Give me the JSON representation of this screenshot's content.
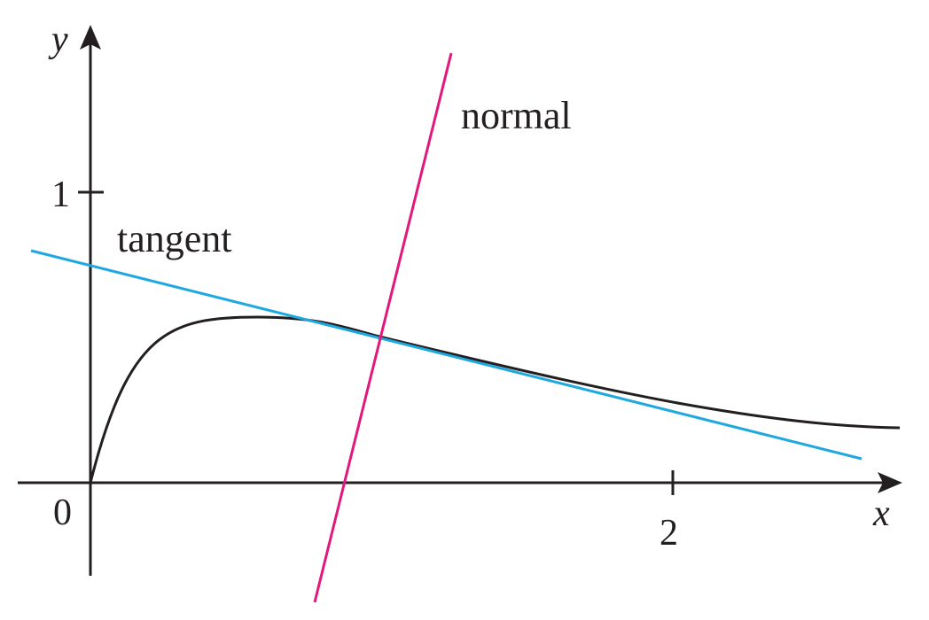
{
  "labels": {
    "x_axis": "x",
    "y_axis": "y",
    "origin": "0",
    "y_tick": "1",
    "x_tick": "2",
    "tangent": "tangent",
    "normal": "normal"
  },
  "colors": {
    "curve": "#231f20",
    "axes": "#231f20",
    "tangent": "#1fa8e0",
    "normal": "#e2187f"
  }
}
